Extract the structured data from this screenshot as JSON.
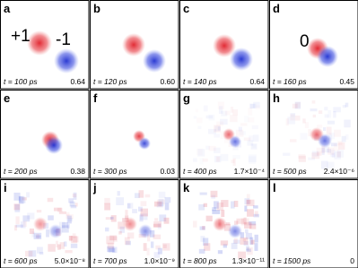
{
  "panels": [
    {
      "label": "a",
      "time": "t = 100 ps",
      "value": "0.64",
      "annotations": [
        "+1",
        "-1"
      ]
    },
    {
      "label": "b",
      "time": "t = 120 ps",
      "value": "0.60"
    },
    {
      "label": "c",
      "time": "t = 140 ps",
      "value": "0.64"
    },
    {
      "label": "d",
      "time": "t = 160 ps",
      "value": "0.45",
      "annotations": [
        "0"
      ]
    },
    {
      "label": "e",
      "time": "t = 200 ps",
      "value": "0.38"
    },
    {
      "label": "f",
      "time": "t = 300 ps",
      "value": "0.03"
    },
    {
      "label": "g",
      "time": "t = 400 ps",
      "value": "1.7×10⁻⁴"
    },
    {
      "label": "h",
      "time": "t = 500 ps",
      "value": "2.4×10⁻⁶"
    },
    {
      "label": "i",
      "time": "t = 600 ps",
      "value": "5.0×10⁻⁸"
    },
    {
      "label": "j",
      "time": "t = 700 ps",
      "value": "1.0×10⁻⁹"
    },
    {
      "label": "k",
      "time": "t = 800 ps",
      "value": "1.3×10⁻¹¹"
    },
    {
      "label": "l",
      "time": "t = 1500 ps",
      "value": "0"
    }
  ]
}
